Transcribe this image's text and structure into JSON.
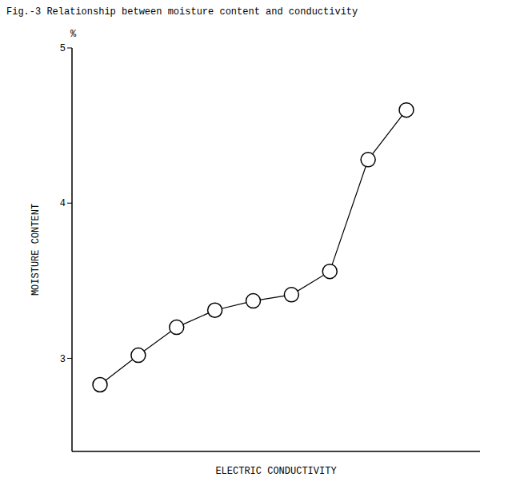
{
  "chart_data": {
    "type": "line",
    "title": "Fig.-3 Relationship between moisture content and conductivity",
    "x_label": "ELECTRIC CONDUCTIVITY",
    "y_label": "MOISTURE CONTENT",
    "annotations": [
      "%"
    ],
    "categories": [
      null,
      null,
      null,
      null,
      null,
      null,
      null,
      null,
      null
    ],
    "values": [
      2.83,
      3.02,
      3.2,
      3.31,
      3.37,
      3.41,
      3.56,
      4.28,
      4.6
    ],
    "color": "#000000",
    "marker": "circle",
    "ylim": [
      2.4,
      5
    ],
    "yticks": [
      3,
      4,
      5
    ],
    "grid": false,
    "tick_labels": "y"
  }
}
